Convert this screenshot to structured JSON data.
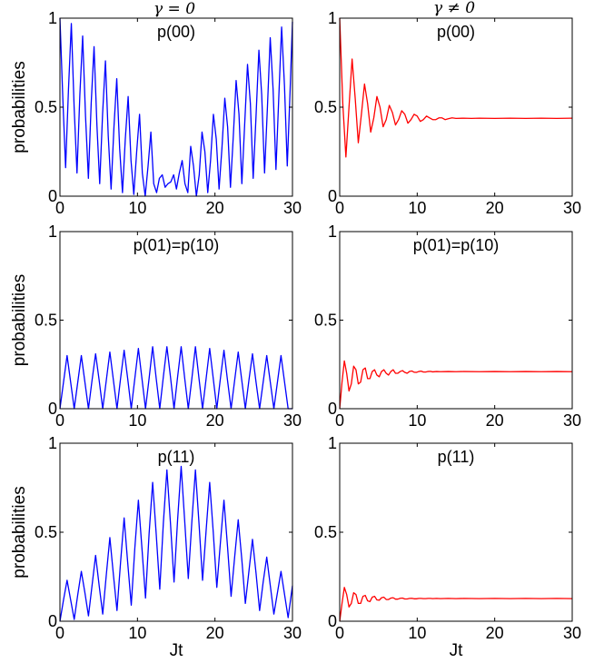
{
  "column_titles": [
    "γ = 0",
    "γ ≠ 0"
  ],
  "colors": {
    "left": "#0000ff",
    "right": "#ff0000"
  },
  "chart_data": [
    {
      "type": "line",
      "title": "p(00)",
      "ylabel": "probabilities",
      "xlabel": "",
      "xlim": [
        0,
        30
      ],
      "ylim": [
        0,
        1
      ],
      "xticks": [
        "0",
        "10",
        "20",
        "30"
      ],
      "yticks": [
        "0",
        "0.5",
        "1"
      ],
      "series": [
        {
          "color": "#0000ff",
          "x": [
            0,
            0.37,
            0.73,
            1.1,
            1.47,
            1.83,
            2.2,
            2.57,
            2.93,
            3.3,
            3.67,
            4.03,
            4.4,
            4.77,
            5.13,
            5.5,
            5.87,
            6.23,
            6.6,
            6.97,
            7.33,
            7.7,
            8.07,
            8.43,
            8.8,
            9.17,
            9.53,
            9.9,
            10.27,
            10.63,
            11.0,
            11.37,
            11.73,
            12.1,
            12.47,
            12.83,
            13.2,
            13.57,
            13.93,
            14.3,
            14.67,
            15.03,
            15.4,
            15.77,
            16.13,
            16.5,
            16.87,
            17.23,
            17.6,
            17.97,
            18.33,
            18.7,
            19.07,
            19.43,
            19.8,
            20.17,
            20.53,
            20.9,
            21.27,
            21.63,
            22.0,
            22.37,
            22.73,
            23.1,
            23.47,
            23.83,
            24.2,
            24.57,
            24.93,
            25.3,
            25.67,
            26.03,
            26.4,
            26.77,
            27.13,
            27.5,
            27.87,
            28.23,
            28.6,
            28.97,
            29.33,
            29.7,
            30.0
          ],
          "y": [
            1,
            0.55,
            0.16,
            0.6,
            0.97,
            0.5,
            0.13,
            0.57,
            0.9,
            0.45,
            0.1,
            0.52,
            0.84,
            0.4,
            0.07,
            0.46,
            0.76,
            0.34,
            0.04,
            0.39,
            0.66,
            0.27,
            0.02,
            0.32,
            0.56,
            0.2,
            0.01,
            0.25,
            0.46,
            0.13,
            0.0,
            0.17,
            0.36,
            0.07,
            0.02,
            0.1,
            0.12,
            0.05,
            0.07,
            0.08,
            0.12,
            0.04,
            0.13,
            0.2,
            0.07,
            0.02,
            0.28,
            0.17,
            0.0,
            0.12,
            0.36,
            0.25,
            0.02,
            0.2,
            0.46,
            0.32,
            0.04,
            0.27,
            0.55,
            0.39,
            0.05,
            0.34,
            0.65,
            0.46,
            0.07,
            0.4,
            0.74,
            0.52,
            0.1,
            0.45,
            0.82,
            0.57,
            0.13,
            0.5,
            0.89,
            0.6,
            0.15,
            0.55,
            0.95,
            0.62,
            0.17,
            0.6,
            0.98
          ]
        }
      ]
    },
    {
      "type": "line",
      "title": "p(00)",
      "ylabel": "",
      "xlabel": "",
      "xlim": [
        0,
        30
      ],
      "ylim": [
        0,
        1
      ],
      "xticks": [
        "0",
        "10",
        "20",
        "30"
      ],
      "yticks": [
        "0",
        "0.5",
        "1"
      ],
      "series": [
        {
          "color": "#ff0000",
          "x": [
            0,
            0.4,
            0.8,
            1.2,
            1.6,
            2.0,
            2.4,
            2.8,
            3.2,
            3.6,
            4.0,
            4.4,
            4.8,
            5.2,
            5.6,
            6.0,
            6.4,
            6.8,
            7.2,
            7.6,
            8.0,
            8.4,
            8.8,
            9.2,
            9.6,
            10.0,
            10.4,
            10.8,
            11.2,
            11.6,
            12.0,
            12.4,
            12.8,
            13.2,
            13.6,
            14.0,
            14.5,
            15,
            16,
            17,
            18,
            20,
            22,
            24,
            26,
            28,
            30
          ],
          "y": [
            1,
            0.52,
            0.22,
            0.5,
            0.77,
            0.55,
            0.3,
            0.46,
            0.63,
            0.52,
            0.36,
            0.44,
            0.56,
            0.5,
            0.39,
            0.43,
            0.51,
            0.47,
            0.4,
            0.43,
            0.48,
            0.46,
            0.41,
            0.43,
            0.46,
            0.45,
            0.42,
            0.43,
            0.45,
            0.44,
            0.43,
            0.43,
            0.44,
            0.44,
            0.43,
            0.435,
            0.44,
            0.437,
            0.438,
            0.437,
            0.438,
            0.437,
            0.438,
            0.437,
            0.438,
            0.437,
            0.438
          ]
        }
      ]
    },
    {
      "type": "line",
      "title": "p(01)=p(10)",
      "ylabel": "probabilities",
      "xlabel": "",
      "xlim": [
        0,
        30
      ],
      "ylim": [
        0,
        1
      ],
      "xticks": [
        "0",
        "10",
        "20",
        "30"
      ],
      "yticks": [
        "0",
        "0.5",
        "1"
      ],
      "series": [
        {
          "color": "#0000ff",
          "x": [
            0,
            0.46,
            0.92,
            1.38,
            1.84,
            2.3,
            2.76,
            3.22,
            3.68,
            4.14,
            4.6,
            5.06,
            5.52,
            5.98,
            6.44,
            6.9,
            7.36,
            7.82,
            8.28,
            8.74,
            9.2,
            9.66,
            10.12,
            10.58,
            11.04,
            11.5,
            11.96,
            12.42,
            12.88,
            13.34,
            13.8,
            14.26,
            14.72,
            15.18,
            15.64,
            16.1,
            16.56,
            17.02,
            17.48,
            17.94,
            18.4,
            18.86,
            19.32,
            19.78,
            20.24,
            20.7,
            21.16,
            21.62,
            22.08,
            22.54,
            23.0,
            23.46,
            23.92,
            24.38,
            24.84,
            25.3,
            25.76,
            26.22,
            26.68,
            27.14,
            27.6,
            28.06,
            28.52,
            28.98,
            29.44,
            30.0
          ],
          "y": [
            0,
            0.15,
            0.3,
            0.15,
            0,
            0.15,
            0.3,
            0.15,
            0,
            0.16,
            0.31,
            0.16,
            0,
            0.16,
            0.32,
            0.16,
            0,
            0.17,
            0.33,
            0.17,
            0,
            0.17,
            0.34,
            0.17,
            0,
            0.17,
            0.35,
            0.17,
            0,
            0.18,
            0.35,
            0.18,
            0,
            0.18,
            0.35,
            0.17,
            0,
            0.17,
            0.35,
            0.17,
            0,
            0.17,
            0.34,
            0.17,
            0,
            0.17,
            0.33,
            0.16,
            0,
            0.16,
            0.32,
            0.16,
            0,
            0.16,
            0.31,
            0.15,
            0,
            0.15,
            0.3,
            0.15,
            0,
            0.15,
            0.3,
            0.15,
            0,
            0.0
          ]
        }
      ]
    },
    {
      "type": "line",
      "title": "p(01)=p(10)",
      "ylabel": "",
      "xlabel": "",
      "xlim": [
        0,
        30
      ],
      "ylim": [
        0,
        1
      ],
      "xticks": [
        "0",
        "10",
        "20",
        "30"
      ],
      "yticks": [
        "0",
        "0.5",
        "1"
      ],
      "series": [
        {
          "color": "#ff0000",
          "x": [
            0,
            0.3,
            0.6,
            0.9,
            1.2,
            1.5,
            1.8,
            2.1,
            2.4,
            2.7,
            3.0,
            3.3,
            3.6,
            3.9,
            4.2,
            4.5,
            4.8,
            5.1,
            5.4,
            5.7,
            6.0,
            6.3,
            6.6,
            6.9,
            7.2,
            7.5,
            7.8,
            8.1,
            8.4,
            8.7,
            9.0,
            9.3,
            9.6,
            9.9,
            10.2,
            10.5,
            10.8,
            11.1,
            11.4,
            11.7,
            12.0,
            12.5,
            13,
            14,
            15,
            16,
            18,
            20,
            22,
            24,
            26,
            28,
            30
          ],
          "y": [
            0,
            0.15,
            0.27,
            0.2,
            0.1,
            0.14,
            0.24,
            0.22,
            0.14,
            0.15,
            0.22,
            0.23,
            0.17,
            0.17,
            0.21,
            0.22,
            0.19,
            0.18,
            0.21,
            0.22,
            0.2,
            0.19,
            0.21,
            0.22,
            0.2,
            0.2,
            0.21,
            0.215,
            0.205,
            0.2,
            0.21,
            0.213,
            0.206,
            0.205,
            0.21,
            0.212,
            0.207,
            0.207,
            0.21,
            0.211,
            0.208,
            0.21,
            0.209,
            0.21,
            0.209,
            0.21,
            0.209,
            0.21,
            0.209,
            0.21,
            0.209,
            0.21,
            0.209
          ]
        }
      ]
    },
    {
      "type": "line",
      "title": "p(11)",
      "ylabel": "probabilities",
      "xlabel": "Jt",
      "xlim": [
        0,
        30
      ],
      "ylim": [
        0,
        1
      ],
      "xticks": [
        "0",
        "10",
        "20",
        "30"
      ],
      "yticks": [
        "0",
        "0.5",
        "1"
      ],
      "series": [
        {
          "color": "#0000ff",
          "x": [
            0,
            0.46,
            0.92,
            1.38,
            1.84,
            2.3,
            2.76,
            3.22,
            3.68,
            4.14,
            4.6,
            5.06,
            5.52,
            5.98,
            6.44,
            6.9,
            7.36,
            7.82,
            8.28,
            8.74,
            9.2,
            9.66,
            10.12,
            10.58,
            11.04,
            11.5,
            11.96,
            12.42,
            12.88,
            13.34,
            13.8,
            14.26,
            14.72,
            15.18,
            15.64,
            16.1,
            16.56,
            17.02,
            17.48,
            17.94,
            18.4,
            18.86,
            19.32,
            19.78,
            20.24,
            20.7,
            21.16,
            21.62,
            22.08,
            22.54,
            23.0,
            23.46,
            23.92,
            24.38,
            24.84,
            25.3,
            25.76,
            26.22,
            26.68,
            27.14,
            27.6,
            28.06,
            28.52,
            28.98,
            29.44,
            30.0
          ],
          "y": [
            0,
            0.12,
            0.23,
            0.12,
            0.01,
            0.15,
            0.28,
            0.16,
            0.03,
            0.2,
            0.37,
            0.2,
            0.04,
            0.26,
            0.47,
            0.26,
            0.06,
            0.33,
            0.58,
            0.33,
            0.09,
            0.41,
            0.68,
            0.41,
            0.13,
            0.49,
            0.78,
            0.49,
            0.18,
            0.55,
            0.85,
            0.55,
            0.22,
            0.57,
            0.87,
            0.56,
            0.24,
            0.56,
            0.85,
            0.55,
            0.23,
            0.51,
            0.78,
            0.5,
            0.19,
            0.44,
            0.68,
            0.42,
            0.14,
            0.36,
            0.57,
            0.35,
            0.1,
            0.28,
            0.46,
            0.27,
            0.06,
            0.22,
            0.36,
            0.2,
            0.04,
            0.16,
            0.28,
            0.15,
            0.02,
            0.2
          ]
        }
      ]
    },
    {
      "type": "line",
      "title": "p(11)",
      "ylabel": "",
      "xlabel": "Jt",
      "xlim": [
        0,
        30
      ],
      "ylim": [
        0,
        1
      ],
      "xticks": [
        "0",
        "10",
        "20",
        "30"
      ],
      "yticks": [
        "0",
        "0.5",
        "1"
      ],
      "series": [
        {
          "color": "#ff0000",
          "x": [
            0,
            0.3,
            0.6,
            0.9,
            1.2,
            1.5,
            1.8,
            2.1,
            2.4,
            2.7,
            3.0,
            3.3,
            3.6,
            3.9,
            4.2,
            4.5,
            4.8,
            5.1,
            5.4,
            5.7,
            6.0,
            6.3,
            6.6,
            6.9,
            7.2,
            7.5,
            7.8,
            8.1,
            8.4,
            8.7,
            9.0,
            9.3,
            9.6,
            9.9,
            10.2,
            10.5,
            10.8,
            11.1,
            11.4,
            11.7,
            12.0,
            12.5,
            13,
            14,
            15,
            16,
            18,
            20,
            22,
            24,
            26,
            28,
            30
          ],
          "y": [
            0,
            0.1,
            0.19,
            0.15,
            0.08,
            0.1,
            0.16,
            0.15,
            0.1,
            0.1,
            0.14,
            0.145,
            0.115,
            0.11,
            0.135,
            0.14,
            0.12,
            0.118,
            0.132,
            0.135,
            0.122,
            0.122,
            0.13,
            0.132,
            0.124,
            0.124,
            0.129,
            0.13,
            0.125,
            0.125,
            0.128,
            0.129,
            0.126,
            0.126,
            0.128,
            0.128,
            0.127,
            0.127,
            0.128,
            0.128,
            0.127,
            0.128,
            0.127,
            0.128,
            0.127,
            0.128,
            0.127,
            0.128,
            0.127,
            0.128,
            0.127,
            0.128,
            0.127
          ]
        }
      ]
    }
  ]
}
